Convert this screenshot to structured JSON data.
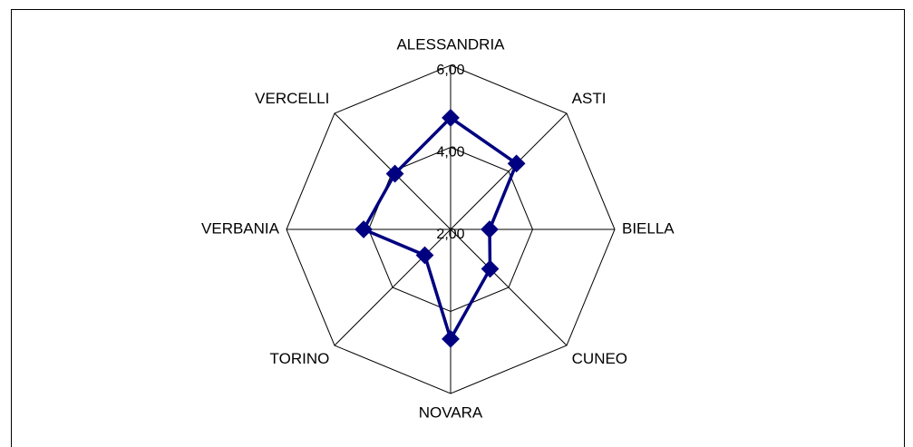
{
  "chart_data": {
    "type": "radar",
    "categories": [
      "ALESSANDRIA",
      "ASTI",
      "BIELLA",
      "CUNEO",
      "NOVARA",
      "TORINO",
      "VERBANIA",
      "VERCELLI"
    ],
    "series": [
      {
        "color": "#000080",
        "values": [
          4.72,
          4.27,
          2.95,
          3.36,
          4.67,
          2.89,
          4.12,
          3.92
        ]
      }
    ],
    "rlim": [
      2,
      6
    ],
    "rticks": [
      {
        "value": 2,
        "label": "2,00"
      },
      {
        "value": 4,
        "label": "4,00"
      },
      {
        "value": 6,
        "label": "6,00"
      }
    ],
    "grid": true
  }
}
